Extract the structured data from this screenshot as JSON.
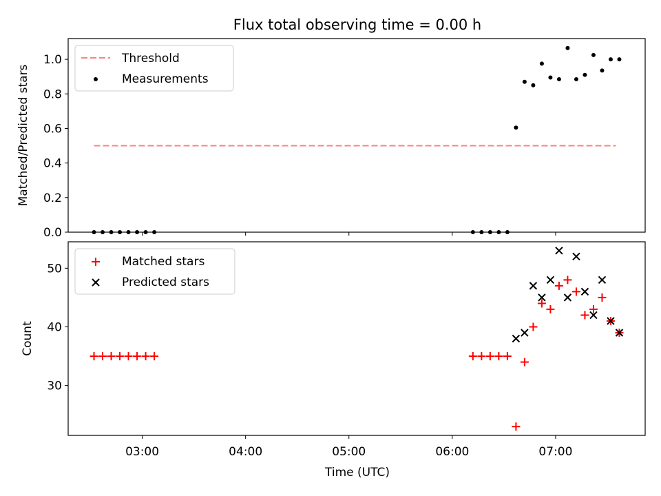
{
  "chart_data": {
    "title": "Flux total observing time = 0.00 h",
    "xlabel": "Time (UTC)",
    "x_ticks": [
      "03:00",
      "04:00",
      "05:00",
      "06:00",
      "07:00"
    ],
    "xlim": [
      "02:17",
      "07:52"
    ],
    "colors": {
      "threshold": "#ff7f7f",
      "measurements": "#000000",
      "matched": "#ff0000",
      "predicted": "#000000"
    },
    "panels": [
      {
        "type": "scatter",
        "ylabel": "Matched/Predicted stars",
        "ylim": [
          0,
          1.12
        ],
        "y_ticks": [
          "0.0",
          "0.2",
          "0.4",
          "0.6",
          "0.8",
          "1.0"
        ],
        "legend": "top-left",
        "threshold": {
          "name": "Threshold",
          "y": 0.5,
          "x_start": "02:32",
          "x_end": "07:35"
        },
        "measurements": {
          "name": "Measurements",
          "x": [
            "02:32",
            "02:37",
            "02:42",
            "02:47",
            "02:52",
            "02:57",
            "03:02",
            "03:07",
            "06:12",
            "06:17",
            "06:22",
            "06:27",
            "06:32",
            "06:37",
            "06:42",
            "06:47",
            "06:52",
            "06:57",
            "07:02",
            "07:07",
            "07:12",
            "07:17",
            "07:22",
            "07:27",
            "07:32",
            "07:37"
          ],
          "y": [
            0,
            0,
            0,
            0,
            0,
            0,
            0,
            0,
            0,
            0,
            0,
            0,
            0,
            0.605,
            0.87,
            0.85,
            0.975,
            0.895,
            0.885,
            1.065,
            0.885,
            0.91,
            1.025,
            0.935,
            1.0,
            1.0
          ]
        }
      },
      {
        "type": "scatter",
        "ylabel": "Count",
        "ylim": [
          21.5,
          54.5
        ],
        "y_ticks": [
          "30",
          "40",
          "50"
        ],
        "legend": "top-left",
        "series": [
          {
            "name": "Matched stars",
            "x": [
              "02:32",
              "02:37",
              "02:42",
              "02:47",
              "02:52",
              "02:57",
              "03:02",
              "03:07",
              "06:12",
              "06:17",
              "06:22",
              "06:27",
              "06:32",
              "06:37",
              "06:42",
              "06:47",
              "06:52",
              "06:57",
              "07:02",
              "07:07",
              "07:12",
              "07:17",
              "07:22",
              "07:27",
              "07:32",
              "07:37"
            ],
            "y": [
              35,
              35,
              35,
              35,
              35,
              35,
              35,
              35,
              35,
              35,
              35,
              35,
              35,
              23,
              34,
              40,
              44,
              43,
              47,
              48,
              46,
              42,
              43,
              45,
              41,
              39
            ]
          },
          {
            "name": "Predicted stars",
            "x": [
              "06:37",
              "06:42",
              "06:47",
              "06:52",
              "06:57",
              "07:02",
              "07:07",
              "07:12",
              "07:17",
              "07:22",
              "07:27",
              "07:32",
              "07:37"
            ],
            "y": [
              38,
              39,
              47,
              45,
              48,
              53,
              45,
              52,
              46,
              42,
              48,
              41,
              39
            ]
          }
        ]
      }
    ]
  }
}
